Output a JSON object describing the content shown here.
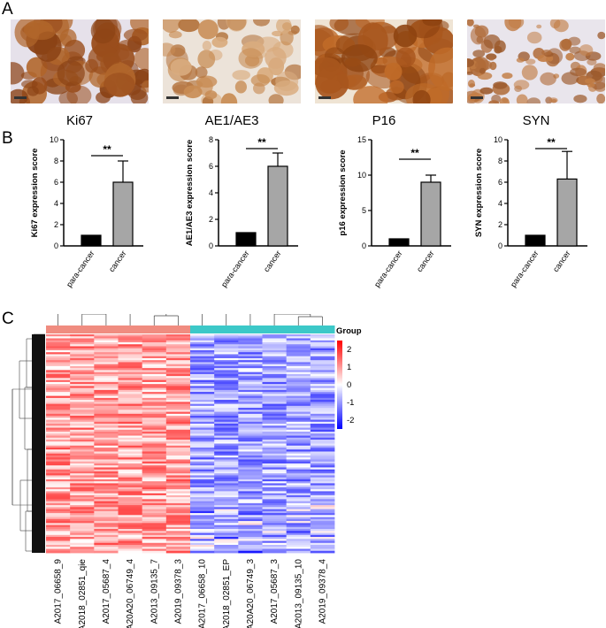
{
  "panels": {
    "a": "A",
    "b": "B",
    "c": "C"
  },
  "ihc_images": [
    {
      "label": "Ki67",
      "tone": "brown-dense"
    },
    {
      "label": "AE1/AE3",
      "tone": "brown-light"
    },
    {
      "label": "P16",
      "tone": "brown-strong"
    },
    {
      "label": "SYN",
      "tone": "brown-scattered"
    }
  ],
  "chart_data": [
    {
      "type": "bar",
      "ylabel": "Ki67 expression score",
      "categories": [
        "para-cancer",
        "cancer"
      ],
      "values": [
        1,
        6
      ],
      "errors": [
        0,
        2
      ],
      "ylim": [
        0,
        10
      ],
      "yticks": [
        0,
        2,
        4,
        6,
        8,
        10
      ],
      "significance": "**",
      "colors": [
        "#000000",
        "#a6a6a6"
      ]
    },
    {
      "type": "bar",
      "ylabel": "AE1/AE3 expression score",
      "categories": [
        "para-cancer",
        "cancer"
      ],
      "values": [
        1,
        6
      ],
      "errors": [
        0,
        1
      ],
      "ylim": [
        0,
        8
      ],
      "yticks": [
        0,
        2,
        4,
        6,
        8
      ],
      "significance": "**",
      "colors": [
        "#000000",
        "#a6a6a6"
      ]
    },
    {
      "type": "bar",
      "ylabel": "p16 expression score",
      "categories": [
        "para-cancer",
        "cancer"
      ],
      "values": [
        1,
        9
      ],
      "errors": [
        0,
        1
      ],
      "ylim": [
        0,
        15
      ],
      "yticks": [
        0,
        5,
        10,
        15
      ],
      "significance": "**",
      "colors": [
        "#000000",
        "#a6a6a6"
      ]
    },
    {
      "type": "bar",
      "ylabel": "SYN expression score",
      "categories": [
        "para-cancer",
        "cancer"
      ],
      "values": [
        1,
        6.3
      ],
      "errors": [
        0,
        2.6
      ],
      "ylim": [
        0,
        10
      ],
      "yticks": [
        0,
        2,
        4,
        6,
        8,
        10
      ],
      "significance": "**",
      "colors": [
        "#000000",
        "#a6a6a6"
      ]
    },
    {
      "type": "heatmap",
      "samples": [
        "A2017_06658_9",
        "A2018_02851_qie",
        "A2017_05687_4",
        "A20A20_06749_4",
        "A2013_09135_7",
        "A2019_09378_3",
        "A2017_06658_10",
        "A2018_02851_EP",
        "A20A20_06749_3",
        "A2017_05687_3",
        "A2013_09135_10",
        "A2019_09378_4"
      ],
      "groups": [
        "para-cancer",
        "para-cancer",
        "para-cancer",
        "para-cancer",
        "para-cancer",
        "para-cancer",
        "cancer",
        "cancer",
        "cancer",
        "cancer",
        "cancer",
        "cancer"
      ],
      "group_colors": {
        "para-cancer": "#f08c80",
        "cancer": "#3cc8c8"
      },
      "legend_title": "Group",
      "color_scale": {
        "min": -2.5,
        "max": 2.5,
        "ticks": [
          2,
          1,
          0,
          -1,
          -2
        ],
        "low": "#0000ff",
        "mid": "#ffffff",
        "high": "#ff0000"
      }
    }
  ]
}
